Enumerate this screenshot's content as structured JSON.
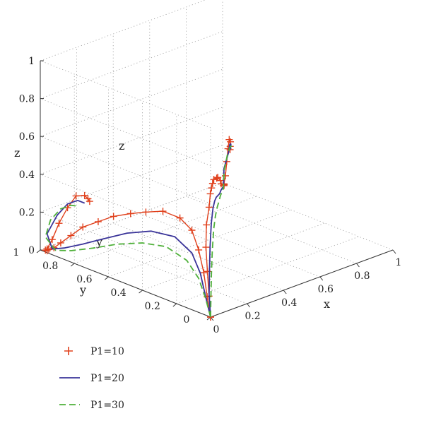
{
  "chart_data": {
    "type": "line",
    "subtype": "3d-line-with-plane-projections",
    "title": "",
    "xlabel": "x",
    "ylabel": "y",
    "zlabel": "z",
    "xlim": [
      0,
      1
    ],
    "ylim": [
      0,
      1
    ],
    "zlim": [
      0,
      1
    ],
    "grid": true,
    "legend_position": "bottom-left",
    "x_ticks": [
      "0",
      "0.2",
      "0.4",
      "0.6",
      "0.8",
      "1"
    ],
    "y_ticks": [
      "0",
      "0.2",
      "0.4",
      "0.6",
      "0.8",
      "1"
    ],
    "z_ticks": [
      "0",
      "0.2",
      "0.4",
      "0.6",
      "0.8",
      "1"
    ],
    "projection_labels": {
      "z": "z",
      "y": "y"
    },
    "series": [
      {
        "name": "P1=10",
        "style": "plus-markers",
        "color": "#e0401c",
        "points": [
          [
            0.0,
            0.0,
            0.0
          ],
          [
            0.01,
            0.02,
            0.1
          ],
          [
            0.02,
            0.04,
            0.22
          ],
          [
            0.04,
            0.07,
            0.33
          ],
          [
            0.08,
            0.11,
            0.42
          ],
          [
            0.16,
            0.18,
            0.46
          ],
          [
            0.26,
            0.28,
            0.46
          ],
          [
            0.36,
            0.38,
            0.42
          ],
          [
            0.45,
            0.47,
            0.38
          ],
          [
            0.55,
            0.57,
            0.33
          ],
          [
            0.65,
            0.66,
            0.27
          ],
          [
            0.74,
            0.75,
            0.21
          ],
          [
            0.82,
            0.82,
            0.14
          ],
          [
            0.88,
            0.88,
            0.08
          ],
          [
            0.93,
            0.92,
            0.04
          ],
          [
            0.96,
            0.95,
            0.02
          ],
          [
            0.97,
            0.96,
            0.01
          ],
          [
            0.98,
            0.97,
            0.01
          ],
          [
            0.97,
            0.96,
            0.02
          ],
          [
            0.95,
            0.93,
            0.08
          ],
          [
            0.92,
            0.89,
            0.18
          ],
          [
            0.88,
            0.84,
            0.28
          ],
          [
            0.84,
            0.79,
            0.36
          ],
          [
            0.8,
            0.74,
            0.38
          ],
          [
            0.78,
            0.72,
            0.37
          ],
          [
            0.77,
            0.71,
            0.36
          ]
        ]
      },
      {
        "name": "P1=20",
        "style": "solid",
        "color": "#3a3499",
        "points": [
          [
            0.0,
            0.0,
            0.0
          ],
          [
            0.02,
            0.03,
            0.1
          ],
          [
            0.05,
            0.06,
            0.21
          ],
          [
            0.1,
            0.11,
            0.3
          ],
          [
            0.2,
            0.21,
            0.35
          ],
          [
            0.34,
            0.35,
            0.33
          ],
          [
            0.48,
            0.49,
            0.27
          ],
          [
            0.62,
            0.63,
            0.19
          ],
          [
            0.75,
            0.75,
            0.12
          ],
          [
            0.86,
            0.86,
            0.06
          ],
          [
            0.94,
            0.93,
            0.03
          ],
          [
            0.97,
            0.96,
            0.1
          ],
          [
            0.94,
            0.9,
            0.22
          ],
          [
            0.89,
            0.84,
            0.3
          ],
          [
            0.84,
            0.78,
            0.34
          ],
          [
            0.8,
            0.74,
            0.34
          ]
        ]
      },
      {
        "name": "P1=30",
        "style": "dashed",
        "color": "#4fb03a",
        "points": [
          [
            0.0,
            0.0,
            0.0
          ],
          [
            0.03,
            0.03,
            0.09
          ],
          [
            0.07,
            0.07,
            0.18
          ],
          [
            0.14,
            0.14,
            0.25
          ],
          [
            0.26,
            0.26,
            0.28
          ],
          [
            0.4,
            0.4,
            0.25
          ],
          [
            0.55,
            0.55,
            0.19
          ],
          [
            0.69,
            0.69,
            0.12
          ],
          [
            0.82,
            0.82,
            0.06
          ],
          [
            0.92,
            0.91,
            0.03
          ],
          [
            0.98,
            0.97,
            0.08
          ],
          [
            0.97,
            0.94,
            0.18
          ],
          [
            0.93,
            0.88,
            0.26
          ],
          [
            0.88,
            0.82,
            0.3
          ],
          [
            0.84,
            0.78,
            0.31
          ]
        ]
      }
    ]
  }
}
